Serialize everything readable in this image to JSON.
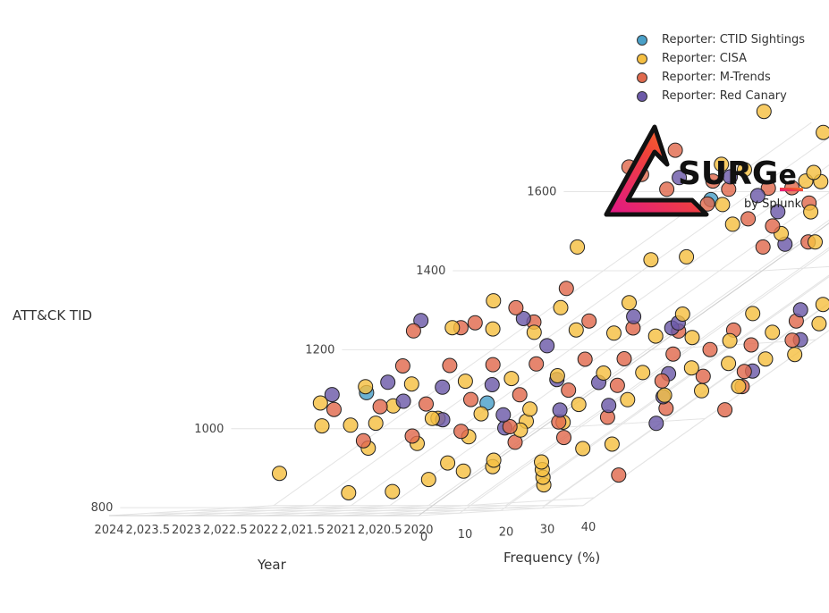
{
  "chart_data": {
    "type": "scatter3d",
    "title": "",
    "x_axis": {
      "label": "Year",
      "range": [
        2020,
        2024
      ],
      "tick_labels": [
        "2024",
        "2,023.5",
        "2023",
        "2,022.5",
        "2022",
        "2,021.5",
        "2021",
        "2,020.5",
        "2020"
      ]
    },
    "y_axis": {
      "label": "Frequency (%)",
      "range": [
        0,
        40
      ],
      "tick_labels": [
        "0",
        "10",
        "20",
        "30",
        "40"
      ]
    },
    "z_axis": {
      "label": "ATT&CK TID",
      "range": [
        780,
        1720
      ],
      "tick_labels": [
        "800",
        "1000",
        "1200",
        "1400",
        "1600"
      ]
    },
    "legend": {
      "placement": "top-right"
    },
    "grid": true,
    "series": [
      {
        "name": "Reporter: CTID Sightings",
        "color": "#4aa0c8",
        "points": [
          [
            2022.1,
            3,
            1578
          ],
          [
            2021.4,
            5,
            1062
          ],
          [
            2023.0,
            2,
            1090
          ]
        ]
      },
      {
        "name": "Reporter: CISA",
        "color": "#f5bf42",
        "points": [
          [
            2023.5,
            13,
            1795
          ],
          [
            2022.5,
            16,
            1740
          ],
          [
            2022.8,
            7,
            1665
          ],
          [
            2021.6,
            11,
            1620
          ],
          [
            2021.8,
            14,
            1640
          ],
          [
            2020.9,
            20,
            1640
          ],
          [
            2020.5,
            32,
            1680
          ],
          [
            2020.3,
            38,
            1630
          ],
          [
            2020.8,
            26,
            1610
          ],
          [
            2022.3,
            12,
            1560
          ],
          [
            2021.1,
            24,
            1555
          ],
          [
            2021.9,
            30,
            1530
          ],
          [
            2020.6,
            36,
            1520
          ],
          [
            2022.2,
            20,
            1505
          ],
          [
            2021.5,
            22,
            1480
          ],
          [
            2020.2,
            40,
            1490
          ],
          [
            2023.0,
            28,
            1410
          ],
          [
            2022.4,
            24,
            1420
          ],
          [
            2021.2,
            28,
            1455
          ],
          [
            2020.4,
            30,
            1460
          ],
          [
            2023.6,
            16,
            1450
          ],
          [
            2024.0,
            22,
            1310
          ],
          [
            2023.2,
            26,
            1290
          ],
          [
            2022.6,
            30,
            1300
          ],
          [
            2021.8,
            32,
            1270
          ],
          [
            2021.0,
            34,
            1270
          ],
          [
            2020.5,
            39,
            1290
          ],
          [
            2020.1,
            42,
            1300
          ],
          [
            2020.3,
            41,
            1240
          ],
          [
            2020.6,
            38,
            1220
          ],
          [
            2020.9,
            36,
            1200
          ],
          [
            2021.3,
            33,
            1210
          ],
          [
            2021.7,
            31,
            1215
          ],
          [
            2022.1,
            27,
            1225
          ],
          [
            2022.5,
            24,
            1235
          ],
          [
            2022.9,
            22,
            1230
          ],
          [
            2023.4,
            20,
            1240
          ],
          [
            2023.8,
            17,
            1245
          ],
          [
            2020.2,
            44,
            1160
          ],
          [
            2020.4,
            42,
            1150
          ],
          [
            2020.7,
            40,
            1140
          ],
          [
            2021.0,
            38,
            1130
          ],
          [
            2021.4,
            35,
            1120
          ],
          [
            2021.8,
            33,
            1120
          ],
          [
            2022.2,
            30,
            1115
          ],
          [
            2022.6,
            27,
            1110
          ],
          [
            2023.0,
            24,
            1105
          ],
          [
            2023.5,
            21,
            1100
          ],
          [
            2023.9,
            18,
            1095
          ],
          [
            2020.3,
            43,
            1080
          ],
          [
            2020.6,
            41,
            1070
          ],
          [
            2020.9,
            39,
            1060
          ],
          [
            2021.2,
            37,
            1050
          ],
          [
            2021.6,
            34,
            1040
          ],
          [
            2022.0,
            31,
            1030
          ],
          [
            2022.4,
            28,
            1020
          ],
          [
            2022.8,
            25,
            1010
          ],
          [
            2023.3,
            22,
            1000
          ],
          [
            2023.8,
            19,
            995
          ],
          [
            2021.5,
            26,
            980
          ],
          [
            2021.9,
            23,
            965
          ],
          [
            2022.3,
            20,
            950
          ],
          [
            2022.7,
            17,
            940
          ],
          [
            2020.4,
            33,
            940
          ],
          [
            2020.6,
            31,
            930
          ],
          [
            2021.2,
            24,
            905
          ],
          [
            2021.6,
            21,
            900
          ],
          [
            2021.2,
            20,
            880
          ],
          [
            2021.4,
            18,
            860
          ],
          [
            2021.6,
            17,
            830
          ],
          [
            2020.5,
            26,
            880
          ],
          [
            2020.4,
            27,
            860
          ],
          [
            2020.3,
            28,
            840
          ],
          [
            2021.9,
            12,
            830
          ],
          [
            2020.6,
            25,
            900
          ],
          [
            2021.0,
            22,
            890
          ],
          [
            2023.1,
            11,
            880
          ],
          [
            2022.9,
            12,
            1050
          ],
          [
            2023.7,
            8,
            1060
          ],
          [
            2023.2,
            14,
            1000
          ],
          [
            2022.0,
            10,
            1020
          ],
          [
            2021.0,
            14,
            1010
          ],
          [
            2020.7,
            18,
            1005
          ],
          [
            2022.5,
            9,
            1650
          ],
          [
            2021.3,
            9,
            1620
          ]
        ]
      },
      {
        "name": "Reporter: M-Trends",
        "color": "#e06a4e",
        "points": [
          [
            2023.8,
            4,
            1660
          ],
          [
            2023.7,
            8,
            1700
          ],
          [
            2023.6,
            6,
            1640
          ],
          [
            2023.2,
            10,
            1600
          ],
          [
            2022.8,
            11,
            1620
          ],
          [
            2022.4,
            10,
            1600
          ],
          [
            2022.1,
            14,
            1600
          ],
          [
            2021.9,
            16,
            1600
          ],
          [
            2021.5,
            18,
            1560
          ],
          [
            2021.2,
            20,
            1560
          ],
          [
            2020.7,
            24,
            1570
          ],
          [
            2020.9,
            30,
            1610
          ],
          [
            2022.6,
            14,
            1560
          ],
          [
            2022.0,
            18,
            1520
          ],
          [
            2021.7,
            21,
            1500
          ],
          [
            2021.2,
            16,
            1450
          ],
          [
            2020.9,
            20,
            1460
          ],
          [
            2024.0,
            12,
            1240
          ],
          [
            2023.4,
            13,
            1260
          ],
          [
            2022.8,
            16,
            1260
          ],
          [
            2022.3,
            20,
            1260
          ],
          [
            2021.8,
            24,
            1240
          ],
          [
            2021.3,
            27,
            1230
          ],
          [
            2020.8,
            31,
            1230
          ],
          [
            2020.4,
            36,
            1250
          ],
          [
            2020.1,
            40,
            1260
          ],
          [
            2020.2,
            38,
            1200
          ],
          [
            2020.5,
            35,
            1190
          ],
          [
            2020.8,
            32,
            1180
          ],
          [
            2021.1,
            30,
            1170
          ],
          [
            2021.5,
            27,
            1160
          ],
          [
            2021.9,
            25,
            1160
          ],
          [
            2022.3,
            22,
            1150
          ],
          [
            2022.7,
            19,
            1150
          ],
          [
            2023.1,
            16,
            1150
          ],
          [
            2023.6,
            14,
            1150
          ],
          [
            2020.3,
            39,
            1120
          ],
          [
            2020.6,
            36,
            1110
          ],
          [
            2020.9,
            33,
            1100
          ],
          [
            2021.3,
            31,
            1090
          ],
          [
            2021.7,
            28,
            1080
          ],
          [
            2022.1,
            25,
            1070
          ],
          [
            2022.5,
            22,
            1060
          ],
          [
            2022.9,
            20,
            1050
          ],
          [
            2023.3,
            17,
            1045
          ],
          [
            2023.7,
            14,
            1040
          ],
          [
            2020.4,
            34,
            1030
          ],
          [
            2020.8,
            30,
            1010
          ],
          [
            2021.2,
            27,
            1000
          ],
          [
            2021.6,
            24,
            990
          ],
          [
            2022.0,
            21,
            980
          ],
          [
            2022.4,
            18,
            970
          ],
          [
            2022.8,
            15,
            960
          ],
          [
            2020.9,
            28,
            960
          ],
          [
            2021.3,
            25,
            950
          ],
          [
            2023.3,
            9,
            1250
          ],
          [
            2022.6,
            8,
            1350
          ],
          [
            2023.0,
            10,
            1300
          ],
          [
            2020.2,
            42,
            1080
          ],
          [
            2020.1,
            44,
            1020
          ],
          [
            2019.9,
            36,
            860
          ]
        ]
      },
      {
        "name": "Reporter: Red Canary",
        "color": "#6c5aa8",
        "points": [
          [
            2023.2,
            9,
            1630
          ],
          [
            2022.7,
            12,
            1630
          ],
          [
            2022.2,
            16,
            1580
          ],
          [
            2021.4,
            22,
            1590
          ],
          [
            2021.0,
            25,
            1560
          ],
          [
            2020.9,
            26,
            1500
          ],
          [
            2021.5,
            27,
            1450
          ],
          [
            2021.6,
            15,
            1540
          ],
          [
            2023.8,
            6,
            1270
          ],
          [
            2022.9,
            14,
            1270
          ],
          [
            2022.2,
            16,
            1200
          ],
          [
            2021.9,
            22,
            1270
          ],
          [
            2021.3,
            24,
            1240
          ],
          [
            2021.5,
            28,
            1250
          ],
          [
            2020.4,
            33,
            1280
          ],
          [
            2020.2,
            40,
            1200
          ],
          [
            2020.3,
            41,
            1120
          ],
          [
            2020.8,
            30,
            1120
          ],
          [
            2021.4,
            27,
            1100
          ],
          [
            2021.8,
            23,
            1110
          ],
          [
            2022.3,
            18,
            1100
          ],
          [
            2022.8,
            16,
            1095
          ],
          [
            2023.4,
            12,
            1110
          ],
          [
            2023.8,
            10,
            1080
          ],
          [
            2021.0,
            30,
            1040
          ],
          [
            2021.4,
            27,
            1030
          ],
          [
            2021.9,
            24,
            1020
          ],
          [
            2022.4,
            20,
            1010
          ],
          [
            2020.6,
            33,
            1060
          ],
          [
            2023.0,
            15,
            1060
          ],
          [
            2020.4,
            37,
            990
          ],
          [
            2021.4,
            19,
            990
          ]
        ]
      }
    ]
  },
  "logo": {
    "word": "SURGe",
    "byline": "by Splunk"
  }
}
